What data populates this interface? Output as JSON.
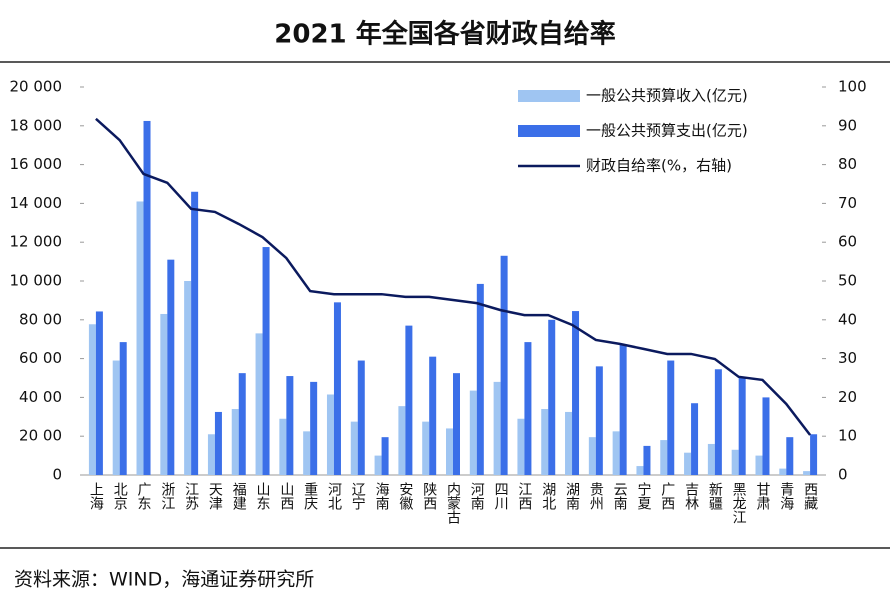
{
  "chart_data": {
    "type": "bar",
    "title": "2021 年全国各省财政自给率",
    "source": "资料来源：WIND，海通证券研究所",
    "categories": [
      "上海",
      "北京",
      "广东",
      "浙江",
      "江苏",
      "天津",
      "福建",
      "山东",
      "山西",
      "重庆",
      "河北",
      "辽宁",
      "海南",
      "安徽",
      "陕西",
      "内蒙古",
      "河南",
      "四川",
      "江西",
      "湖北",
      "湖南",
      "贵州",
      "云南",
      "宁夏",
      "广西",
      "吉林",
      "新疆",
      "黑龙江",
      "甘肃",
      "青海",
      "西藏"
    ],
    "series": [
      {
        "name": "一般公共预算收入(亿元)",
        "color": "#9fc5f2",
        "values": [
          7770,
          5900,
          14100,
          8300,
          10000,
          2100,
          3400,
          7300,
          2900,
          2250,
          4150,
          2750,
          1000,
          3550,
          2750,
          2400,
          4350,
          4800,
          2900,
          3400,
          3250,
          1950,
          2250,
          460,
          1800,
          1150,
          1600,
          1300,
          1000,
          330,
          200
        ]
      },
      {
        "name": "一般公共预算支出(亿元)",
        "color": "#3b6fe8",
        "values": [
          8430,
          6850,
          18250,
          11100,
          14600,
          3250,
          5250,
          11750,
          5100,
          4800,
          8900,
          5900,
          1950,
          7700,
          6100,
          5250,
          9850,
          11300,
          6850,
          8000,
          8450,
          5600,
          6750,
          1500,
          5900,
          3700,
          5450,
          5050,
          4000,
          1950,
          2100
        ]
      },
      {
        "name": "财政自给率(%，右轴)",
        "color": "#0b1a5e",
        "type": "line",
        "axis": "y2",
        "values": [
          91.8,
          86.3,
          77.6,
          75.3,
          68.6,
          67.8,
          64.7,
          61.3,
          55.9,
          47.4,
          46.6,
          46.6,
          46.6,
          45.9,
          45.9,
          45.1,
          44.3,
          42.5,
          41.2,
          41.2,
          38.7,
          34.8,
          33.8,
          32.5,
          31.2,
          31.2,
          29.9,
          25.3,
          24.5,
          18.3,
          10.3
        ]
      }
    ],
    "ylim": [
      0,
      20000
    ],
    "yticks": [
      0,
      {
        "value": 2000,
        "label": "20 00"
      },
      {
        "value": 4000,
        "label": "40 00"
      },
      {
        "value": 6000,
        "label": "60 00"
      },
      {
        "value": 8000,
        "label": "80 00"
      },
      {
        "value": 10000,
        "label": "10 000"
      },
      {
        "value": 12000,
        "label": "12 000"
      },
      {
        "value": 14000,
        "label": "14 000"
      },
      {
        "value": 16000,
        "label": "16 000"
      },
      {
        "value": 18000,
        "label": "18 000"
      },
      {
        "value": 20000,
        "label": "20 000"
      }
    ],
    "y2lim": [
      0,
      100
    ],
    "y2ticks": [
      0,
      10,
      20,
      30,
      40,
      50,
      60,
      70,
      80,
      90,
      100
    ],
    "legend": "upper right"
  }
}
